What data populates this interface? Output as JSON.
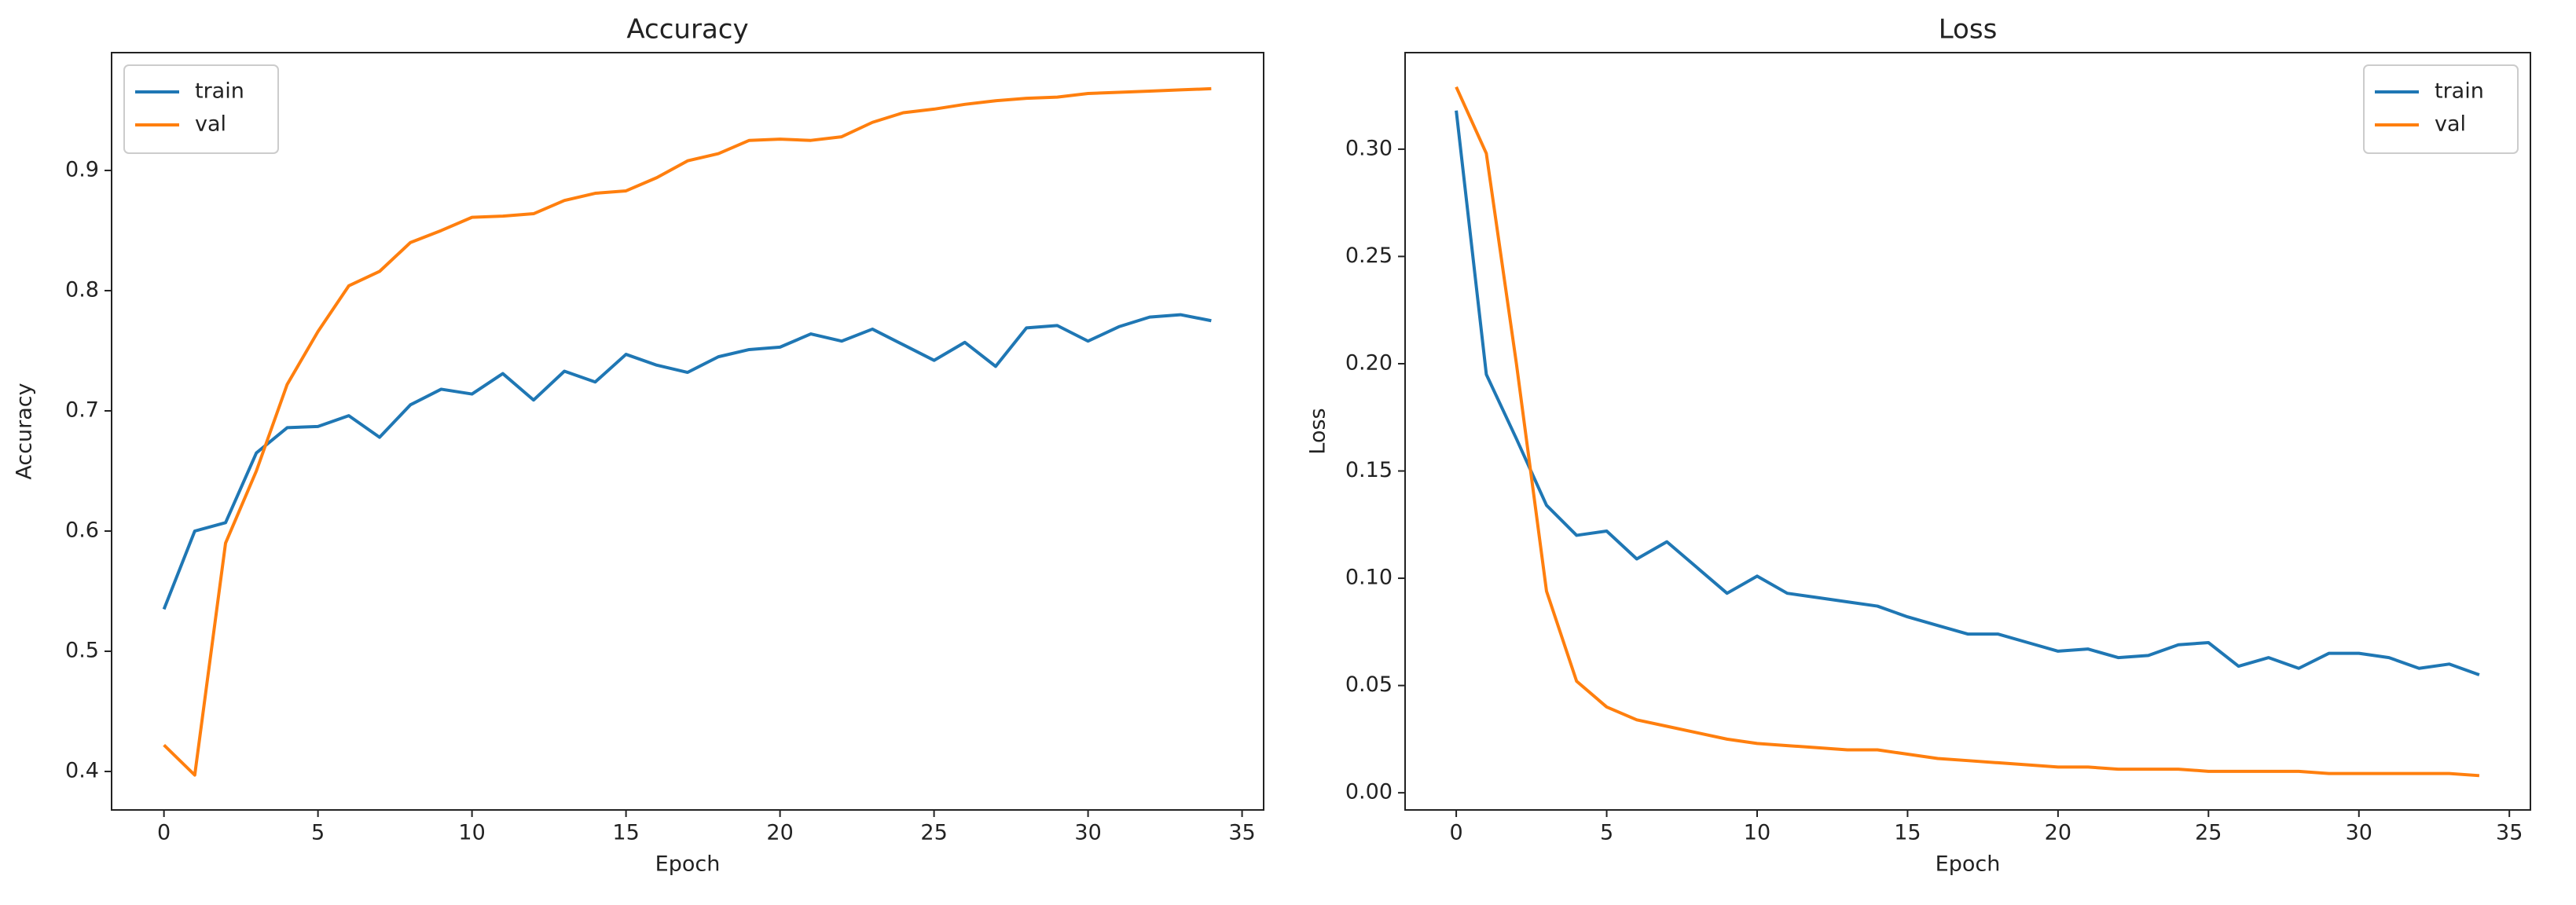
{
  "chart_data": [
    {
      "type": "line",
      "title": "Accuracy",
      "xlabel": "Epoch",
      "ylabel": "Accuracy",
      "legend": "upper left",
      "x": [
        0,
        1,
        2,
        3,
        4,
        5,
        6,
        7,
        8,
        9,
        10,
        11,
        12,
        13,
        14,
        15,
        16,
        17,
        18,
        19,
        20,
        21,
        22,
        23,
        24,
        25,
        26,
        27,
        28,
        29,
        30,
        31,
        32,
        33,
        34
      ],
      "series": [
        {
          "name": "train",
          "color": "#1f77b4",
          "values": [
            0.535,
            0.6,
            0.607,
            0.665,
            0.686,
            0.687,
            0.696,
            0.678,
            0.705,
            0.718,
            0.714,
            0.731,
            0.709,
            0.733,
            0.724,
            0.747,
            0.738,
            0.732,
            0.745,
            0.751,
            0.753,
            0.764,
            0.758,
            0.768,
            0.755,
            0.742,
            0.757,
            0.737,
            0.769,
            0.771,
            0.758,
            0.77,
            0.778,
            0.78,
            0.775
          ]
        },
        {
          "name": "val",
          "color": "#ff7f0e",
          "values": [
            0.422,
            0.397,
            0.59,
            0.65,
            0.722,
            0.766,
            0.804,
            0.816,
            0.84,
            0.85,
            0.861,
            0.862,
            0.864,
            0.875,
            0.881,
            0.883,
            0.894,
            0.908,
            0.914,
            0.925,
            0.926,
            0.925,
            0.928,
            0.94,
            0.948,
            0.951,
            0.955,
            0.958,
            0.96,
            0.961,
            0.964,
            0.965,
            0.966,
            0.967,
            0.968
          ]
        }
      ],
      "xlim": [
        -1.7,
        35.7
      ],
      "xticks": [
        0,
        5,
        10,
        15,
        20,
        25,
        30,
        35
      ],
      "ylim": [
        0.368,
        0.998
      ],
      "yticks": [
        0.4,
        0.5,
        0.6,
        0.7,
        0.8,
        0.9
      ]
    },
    {
      "type": "line",
      "title": "Loss",
      "xlabel": "Epoch",
      "ylabel": "Loss",
      "legend": "upper right",
      "x": [
        0,
        1,
        2,
        3,
        4,
        5,
        6,
        7,
        8,
        9,
        10,
        11,
        12,
        13,
        14,
        15,
        16,
        17,
        18,
        19,
        20,
        21,
        22,
        23,
        24,
        25,
        26,
        27,
        28,
        29,
        30,
        31,
        32,
        33,
        34
      ],
      "series": [
        {
          "name": "train",
          "color": "#1f77b4",
          "values": [
            0.318,
            0.195,
            0.165,
            0.134,
            0.12,
            0.122,
            0.109,
            0.117,
            0.105,
            0.093,
            0.101,
            0.093,
            0.091,
            0.089,
            0.087,
            0.082,
            0.078,
            0.074,
            0.074,
            0.07,
            0.066,
            0.067,
            0.063,
            0.064,
            0.069,
            0.07,
            0.059,
            0.063,
            0.058,
            0.065,
            0.065,
            0.063,
            0.058,
            0.06,
            0.055
          ]
        },
        {
          "name": "val",
          "color": "#ff7f0e",
          "values": [
            0.329,
            0.298,
            0.2,
            0.094,
            0.052,
            0.04,
            0.034,
            0.031,
            0.028,
            0.025,
            0.023,
            0.022,
            0.021,
            0.02,
            0.02,
            0.018,
            0.016,
            0.015,
            0.014,
            0.013,
            0.012,
            0.012,
            0.011,
            0.011,
            0.011,
            0.01,
            0.01,
            0.01,
            0.01,
            0.009,
            0.009,
            0.009,
            0.009,
            0.009,
            0.008
          ]
        }
      ],
      "xlim": [
        -1.7,
        35.7
      ],
      "xticks": [
        0,
        5,
        10,
        15,
        20,
        25,
        30,
        35
      ],
      "ylim": [
        -0.008,
        0.345
      ],
      "yticks": [
        {
          "value": 0,
          "label": "0.00"
        },
        {
          "value": 0.05,
          "label": "0.05"
        },
        {
          "value": 0.1,
          "label": "0.10"
        },
        {
          "value": 0.15,
          "label": "0.15"
        },
        {
          "value": 0.2,
          "label": "0.20"
        },
        {
          "value": 0.25,
          "label": "0.25"
        },
        {
          "value": 0.3,
          "label": "0.30"
        }
      ]
    }
  ]
}
